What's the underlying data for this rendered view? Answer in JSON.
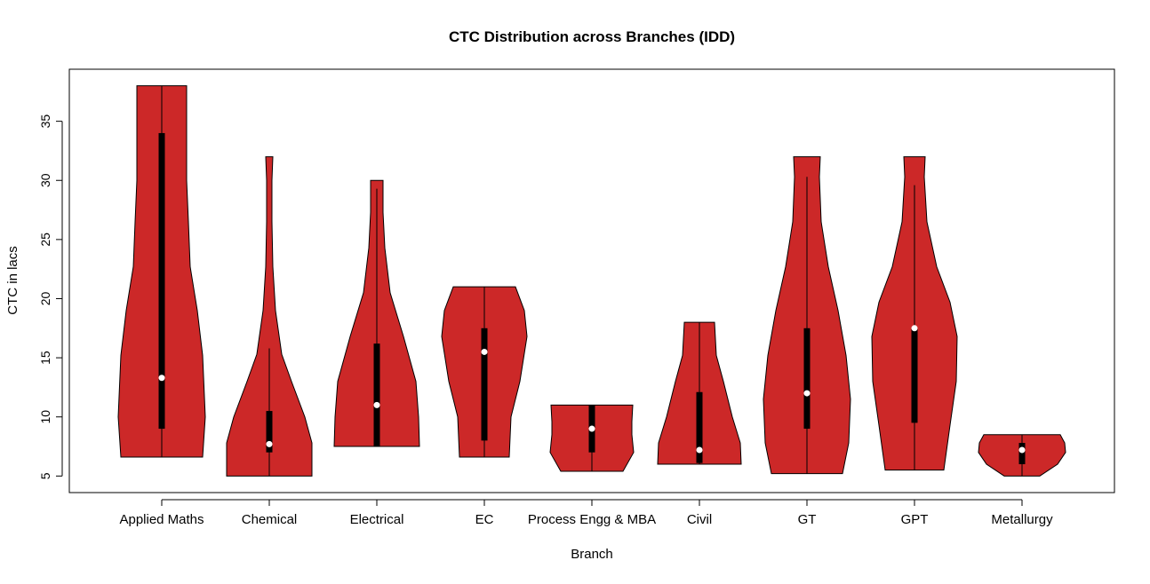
{
  "chart_data": {
    "type": "violin",
    "title": "CTC Distribution across Branches (IDD)",
    "xlabel": "Branch",
    "ylabel": "CTC in lacs",
    "ylim": [
      3.6,
      39.4
    ],
    "yticks": [
      5,
      10,
      15,
      20,
      25,
      30,
      35
    ],
    "fill_color": "#CC2828",
    "grid": false,
    "categories": [
      "Applied Maths",
      "Chemical",
      "Electrical",
      "EC",
      "Process Engg & MBA",
      "Civil",
      "GT",
      "GPT",
      "Metallurgy"
    ],
    "violins": [
      {
        "min": 6.6,
        "max": 38,
        "q1": 9,
        "q3": 34,
        "median": 13.3,
        "whisker_low": 6.6,
        "whisker_high": 38,
        "density": [
          [
            6.6,
            0.92
          ],
          [
            10,
            0.98
          ],
          [
            15.2,
            0.92
          ],
          [
            19,
            0.8
          ],
          [
            22.7,
            0.64
          ],
          [
            26.5,
            0.6
          ],
          [
            30,
            0.56
          ],
          [
            35,
            0.56
          ],
          [
            38,
            0.56
          ]
        ]
      },
      {
        "min": 5,
        "max": 32,
        "q1": 7,
        "q3": 10.5,
        "median": 7.7,
        "whisker_low": 5,
        "whisker_high": 15.8,
        "density": [
          [
            5,
            0.96
          ],
          [
            7.8,
            0.96
          ],
          [
            10,
            0.8
          ],
          [
            13,
            0.5
          ],
          [
            15.3,
            0.28
          ],
          [
            19,
            0.14
          ],
          [
            22.7,
            0.08
          ],
          [
            26.5,
            0.06
          ],
          [
            30,
            0.06
          ],
          [
            32,
            0.08
          ]
        ]
      },
      {
        "min": 7.5,
        "max": 30,
        "q1": 7.5,
        "q3": 16.2,
        "median": 11,
        "whisker_low": 7.5,
        "whisker_high": 29.3,
        "density": [
          [
            7.5,
            0.96
          ],
          [
            10,
            0.94
          ],
          [
            13,
            0.88
          ],
          [
            16.8,
            0.6
          ],
          [
            20.5,
            0.3
          ],
          [
            24.3,
            0.18
          ],
          [
            27.3,
            0.14
          ],
          [
            30,
            0.14
          ]
        ]
      },
      {
        "min": 6.6,
        "max": 21,
        "q1": 8,
        "q3": 17.5,
        "median": 15.5,
        "whisker_low": 6.6,
        "whisker_high": 21,
        "density": [
          [
            6.6,
            0.56
          ],
          [
            10,
            0.6
          ],
          [
            13,
            0.8
          ],
          [
            16.8,
            0.96
          ],
          [
            19,
            0.9
          ],
          [
            21,
            0.7
          ]
        ]
      },
      {
        "min": 5.4,
        "max": 11,
        "q1": 7,
        "q3": 11,
        "median": 9,
        "whisker_low": 5.4,
        "whisker_high": 11,
        "density": [
          [
            5.4,
            0.7
          ],
          [
            7,
            0.94
          ],
          [
            8.5,
            0.9
          ],
          [
            9.6,
            0.9
          ],
          [
            11,
            0.92
          ]
        ]
      },
      {
        "min": 6,
        "max": 18,
        "q1": 6.1,
        "q3": 12.1,
        "median": 7.2,
        "whisker_low": 6,
        "whisker_high": 18,
        "density": [
          [
            6,
            0.94
          ],
          [
            7.8,
            0.92
          ],
          [
            10,
            0.74
          ],
          [
            13,
            0.54
          ],
          [
            15.2,
            0.38
          ],
          [
            18,
            0.34
          ]
        ]
      },
      {
        "min": 5.2,
        "max": 32,
        "q1": 9,
        "q3": 17.5,
        "median": 12,
        "whisker_low": 5.2,
        "whisker_high": 30.3,
        "density": [
          [
            5.2,
            0.8
          ],
          [
            7.8,
            0.94
          ],
          [
            11.5,
            0.98
          ],
          [
            15.2,
            0.88
          ],
          [
            19,
            0.7
          ],
          [
            22.7,
            0.48
          ],
          [
            26.5,
            0.32
          ],
          [
            30.3,
            0.28
          ],
          [
            32,
            0.3
          ]
        ]
      },
      {
        "min": 5.5,
        "max": 32,
        "q1": 9.5,
        "q3": 17.5,
        "median": 17.5,
        "whisker_low": 5.5,
        "whisker_high": 29.6,
        "density": [
          [
            5.5,
            0.66
          ],
          [
            9.3,
            0.8
          ],
          [
            13,
            0.94
          ],
          [
            16.8,
            0.96
          ],
          [
            19.7,
            0.8
          ],
          [
            22.7,
            0.5
          ],
          [
            26.5,
            0.28
          ],
          [
            30.3,
            0.22
          ],
          [
            32,
            0.24
          ]
        ]
      },
      {
        "min": 5,
        "max": 8.5,
        "q1": 6,
        "q3": 7.8,
        "median": 7.2,
        "whisker_low": 5,
        "whisker_high": 8.5,
        "density": [
          [
            5,
            0.4
          ],
          [
            6,
            0.8
          ],
          [
            7,
            0.98
          ],
          [
            7.8,
            0.96
          ],
          [
            8.5,
            0.86
          ]
        ]
      }
    ]
  }
}
